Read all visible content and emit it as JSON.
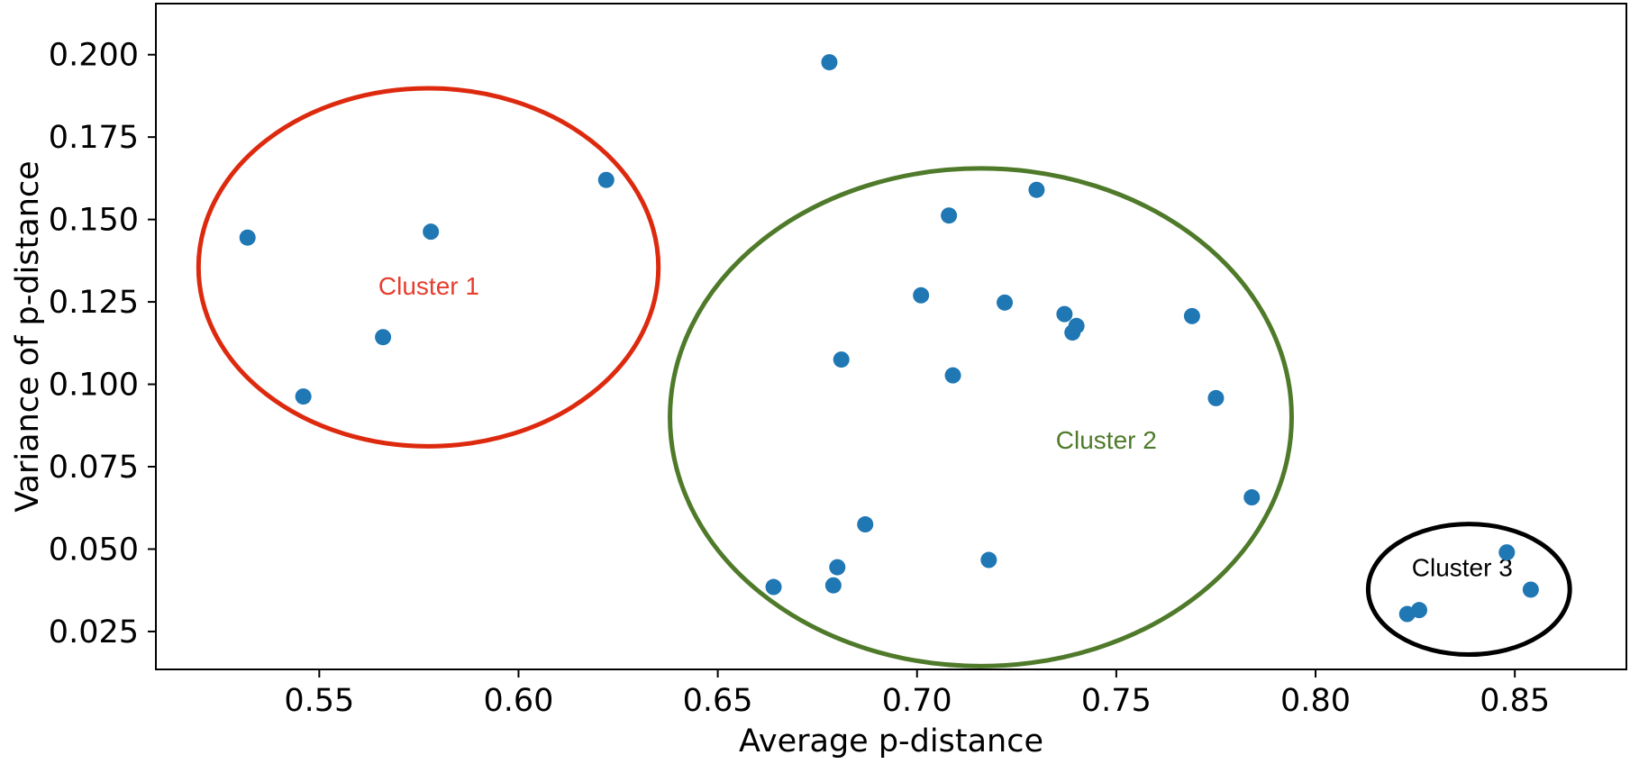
{
  "chart_data": {
    "type": "scatter",
    "title": "",
    "xlabel": "Average p-distance",
    "ylabel": "Variance of p-distance",
    "xlim": [
      0.509,
      0.878
    ],
    "ylim": [
      0.0135,
      0.2155
    ],
    "xticks": [
      0.55,
      0.6,
      0.65,
      0.7,
      0.75,
      0.8,
      0.85
    ],
    "xtick_labels": [
      "0.55",
      "0.60",
      "0.65",
      "0.70",
      "0.75",
      "0.80",
      "0.85"
    ],
    "yticks": [
      0.025,
      0.05,
      0.075,
      0.1,
      0.125,
      0.15,
      0.175,
      0.2
    ],
    "ytick_labels": [
      "0.025",
      "0.050",
      "0.075",
      "0.100",
      "0.125",
      "0.150",
      "0.175",
      "0.200"
    ],
    "grid": false,
    "marker_color": "#1f77b4",
    "points": [
      {
        "x": 0.532,
        "y": 0.1445
      },
      {
        "x": 0.546,
        "y": 0.0963
      },
      {
        "x": 0.566,
        "y": 0.1143
      },
      {
        "x": 0.578,
        "y": 0.1463
      },
      {
        "x": 0.622,
        "y": 0.162
      },
      {
        "x": 0.664,
        "y": 0.0385
      },
      {
        "x": 0.678,
        "y": 0.1977
      },
      {
        "x": 0.679,
        "y": 0.039
      },
      {
        "x": 0.68,
        "y": 0.0445
      },
      {
        "x": 0.681,
        "y": 0.1075
      },
      {
        "x": 0.687,
        "y": 0.0575
      },
      {
        "x": 0.701,
        "y": 0.127
      },
      {
        "x": 0.708,
        "y": 0.1512
      },
      {
        "x": 0.709,
        "y": 0.1027
      },
      {
        "x": 0.718,
        "y": 0.0467
      },
      {
        "x": 0.722,
        "y": 0.1248
      },
      {
        "x": 0.73,
        "y": 0.159
      },
      {
        "x": 0.737,
        "y": 0.1213
      },
      {
        "x": 0.739,
        "y": 0.1157
      },
      {
        "x": 0.74,
        "y": 0.1177
      },
      {
        "x": 0.769,
        "y": 0.1207
      },
      {
        "x": 0.775,
        "y": 0.0958
      },
      {
        "x": 0.784,
        "y": 0.0657
      },
      {
        "x": 0.823,
        "y": 0.0303
      },
      {
        "x": 0.826,
        "y": 0.0315
      },
      {
        "x": 0.848,
        "y": 0.049
      },
      {
        "x": 0.854,
        "y": 0.0377
      }
    ],
    "annotations": [
      {
        "text": "Cluster 1",
        "color": "#e63d2e",
        "ring_color": "#dd2a0f",
        "center": [
          0.5774,
          0.1355
        ],
        "radius": [
          0.0577,
          0.0543
        ],
        "label_at": [
          0.5775,
          0.1272
        ]
      },
      {
        "text": "Cluster 2",
        "color": "#4e7a2a",
        "ring_color": "#4e7a2a",
        "center": [
          0.716,
          0.09
        ],
        "radius": [
          0.078,
          0.0755
        ],
        "label_at": [
          0.7475,
          0.0805
        ]
      },
      {
        "text": "Cluster 3",
        "color": "#000000",
        "ring_color": "#000000",
        "center": [
          0.8385,
          0.0378
        ],
        "radius": [
          0.0253,
          0.0198
        ],
        "label_at": [
          0.8368,
          0.0418
        ]
      }
    ]
  }
}
